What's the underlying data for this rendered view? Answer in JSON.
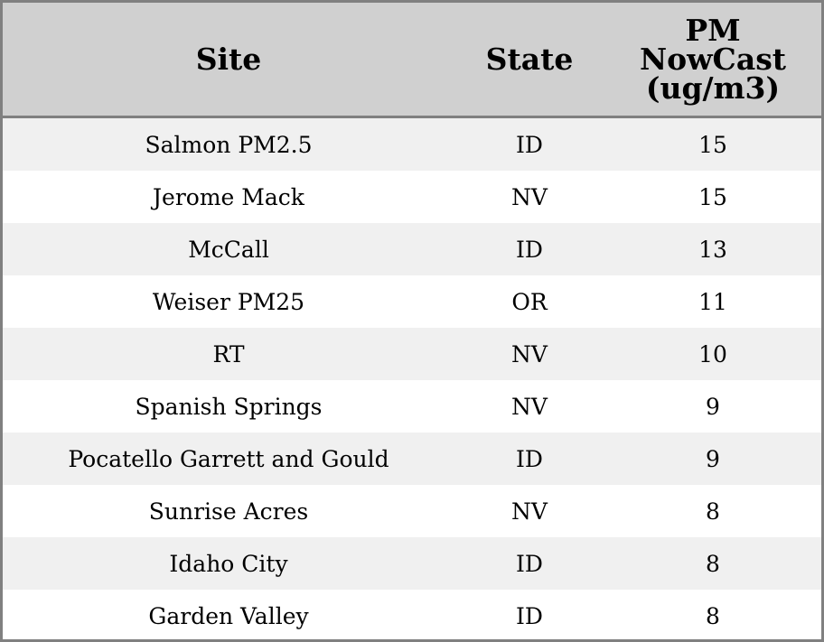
{
  "table": {
    "headers": [
      "Site",
      "State",
      "PM NowCast (ug/m3)"
    ],
    "header_lines": {
      "pm": [
        "PM",
        "NowCast",
        "(ug/m3)"
      ]
    },
    "rows": [
      [
        "Salmon PM2.5",
        "ID",
        "15"
      ],
      [
        "Jerome Mack",
        "NV",
        "15"
      ],
      [
        "McCall",
        "ID",
        "13"
      ],
      [
        "Weiser PM25",
        "OR",
        "11"
      ],
      [
        "RT",
        "NV",
        "10"
      ],
      [
        "Spanish Springs",
        "NV",
        "9"
      ],
      [
        "Pocatello Garrett and Gould",
        "ID",
        "9"
      ],
      [
        "Sunrise Acres",
        "NV",
        "8"
      ],
      [
        "Idaho City",
        "ID",
        "8"
      ],
      [
        "Garden Valley",
        "ID",
        "8"
      ]
    ]
  },
  "colors": {
    "header_bg": "#d0d0d0",
    "stripe_bg": "#f0f0f0",
    "border": "#808080"
  }
}
